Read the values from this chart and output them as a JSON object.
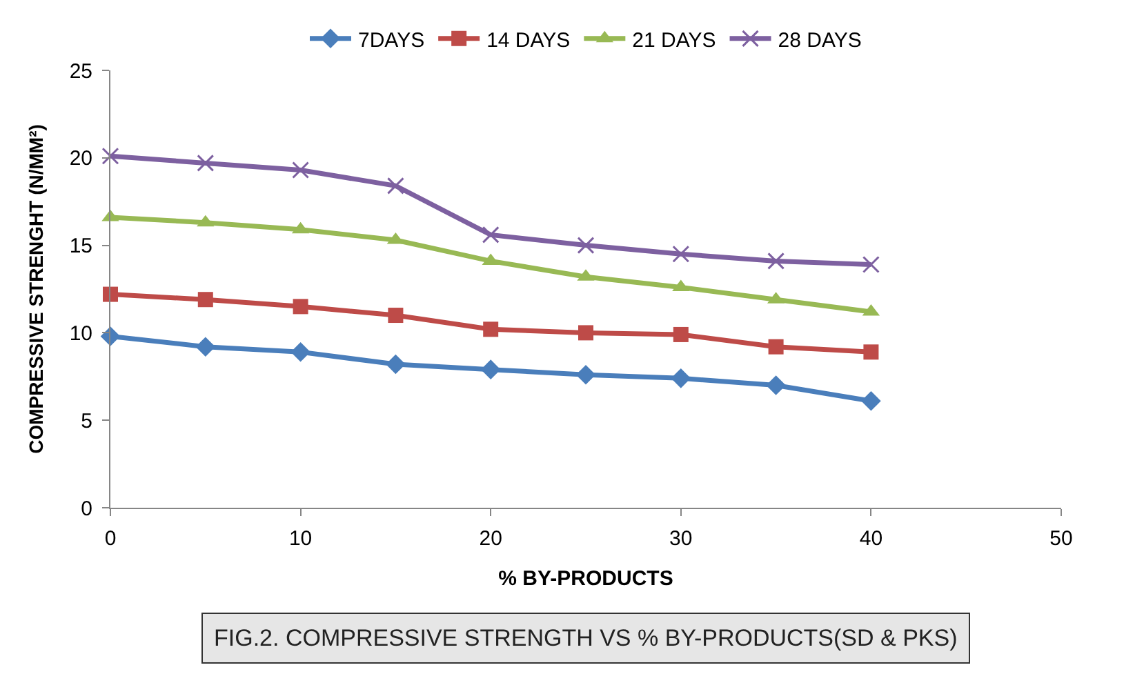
{
  "chart_data": {
    "type": "line",
    "xlabel": "% BY-PRODUCTS",
    "ylabel": "COMPRESSIVE STRENGHT (N/MM²)",
    "x": [
      0,
      5,
      10,
      15,
      20,
      25,
      30,
      35,
      40
    ],
    "series": [
      {
        "name": "7DAYS",
        "color": "#4a7ebb",
        "marker": "diamond",
        "values": [
          9.8,
          9.2,
          8.9,
          8.2,
          7.9,
          7.6,
          7.4,
          7.0,
          6.1
        ]
      },
      {
        "name": "14 DAYS",
        "color": "#be4b48",
        "marker": "square",
        "values": [
          12.2,
          11.9,
          11.5,
          11.0,
          10.2,
          10.0,
          9.9,
          9.2,
          8.9
        ]
      },
      {
        "name": "21 DAYS",
        "color": "#98b954",
        "marker": "triangle",
        "values": [
          16.6,
          16.3,
          15.9,
          15.3,
          14.1,
          13.2,
          12.6,
          11.9,
          11.2
        ]
      },
      {
        "name": "28 DAYS",
        "color": "#7d60a0",
        "marker": "cross",
        "values": [
          20.1,
          19.7,
          19.3,
          18.4,
          15.6,
          15.0,
          14.5,
          14.1,
          13.9
        ]
      }
    ],
    "xlim": [
      0,
      50
    ],
    "xticks": [
      0,
      10,
      20,
      30,
      40,
      50
    ],
    "ylim": [
      0,
      25
    ],
    "yticks": [
      0,
      5,
      10,
      15,
      20,
      25
    ],
    "legend": "top",
    "annotations": [
      "FIG.2. COMPRESSIVE STRENGTH VS % BY-PRODUCTS(SD & PKS)"
    ]
  }
}
